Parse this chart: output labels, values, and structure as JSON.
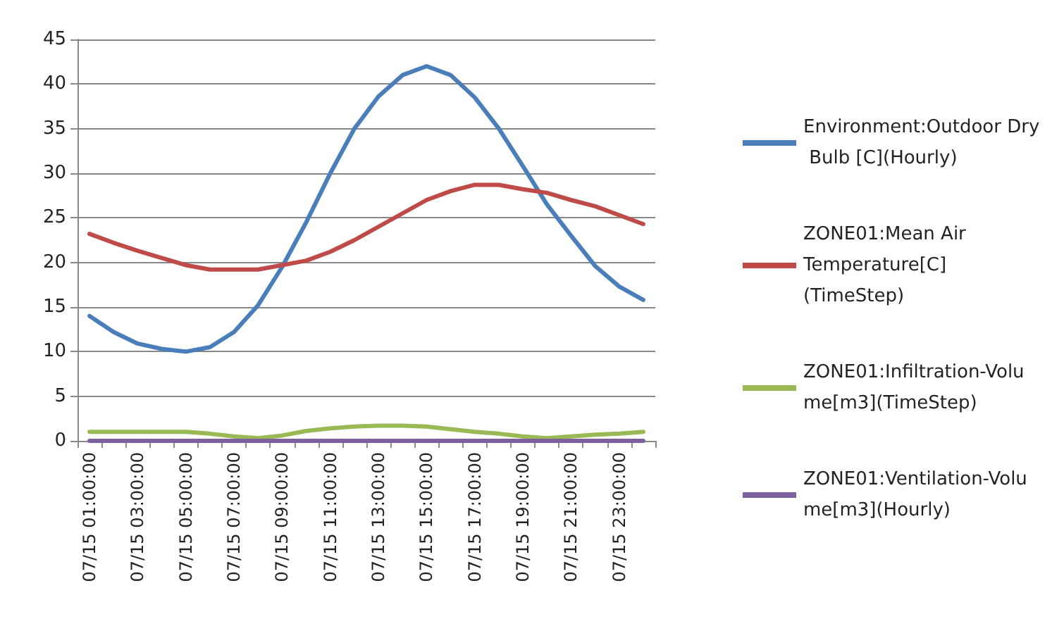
{
  "chart_data": {
    "type": "line",
    "categories": [
      "07/15 01:00:00",
      null,
      "07/15 03:00:00",
      null,
      "07/15 05:00:00",
      null,
      "07/15 07:00:00",
      null,
      "07/15 09:00:00",
      null,
      "07/15 11:00:00",
      null,
      "07/15 13:00:00",
      null,
      "07/15 15:00:00",
      null,
      "07/15 17:00:00",
      null,
      "07/15 19:00:00",
      null,
      "07/15 21:00:00",
      null,
      "07/15 23:00:00",
      null
    ],
    "series": [
      {
        "name": "Environment:Outdoor Dry Bulb [C](Hourly)",
        "color": "#4a7ebb",
        "values": [
          14,
          12.2,
          10.9,
          10.3,
          10,
          10.5,
          12.2,
          15.2,
          19.5,
          24.5,
          30,
          35,
          38.6,
          41,
          42,
          41,
          38.5,
          35,
          30.8,
          26.5,
          23,
          19.6,
          17.3,
          15.8
        ]
      },
      {
        "name": "ZONE01:Mean Air Temperature[C](TimeStep)",
        "color": "#be4b48",
        "values": [
          23.2,
          22.2,
          21.3,
          20.5,
          19.7,
          19.2,
          19.2,
          19.2,
          19.7,
          20.2,
          21.2,
          22.5,
          24,
          25.5,
          27,
          28,
          28.7,
          28.7,
          28.2,
          27.8,
          27,
          26.3,
          25.3,
          24.3
        ]
      },
      {
        "name": "ZONE01:Infiltration-Volume[m3](TimeStep)",
        "color": "#98b954",
        "values": [
          1,
          1,
          1,
          1,
          1,
          0.8,
          0.5,
          0.3,
          0.6,
          1.1,
          1.4,
          1.6,
          1.7,
          1.7,
          1.6,
          1.3,
          1,
          0.8,
          0.5,
          0.3,
          0.5,
          0.7,
          0.8,
          1
        ]
      },
      {
        "name": "ZONE01:Ventilation-Volume[m3](Hourly)",
        "color": "#7d60a0",
        "values": [
          0,
          0,
          0,
          0,
          0,
          0,
          0,
          0,
          0,
          0,
          0,
          0,
          0,
          0,
          0,
          0,
          0,
          0,
          0,
          0,
          0,
          0,
          0,
          0
        ]
      }
    ],
    "ylim": [
      0,
      45
    ],
    "yticks": [
      0,
      5,
      10,
      15,
      20,
      25,
      30,
      35,
      40,
      45
    ],
    "grid": "y",
    "legend": "right",
    "marker": "none",
    "line_style": "solid"
  }
}
